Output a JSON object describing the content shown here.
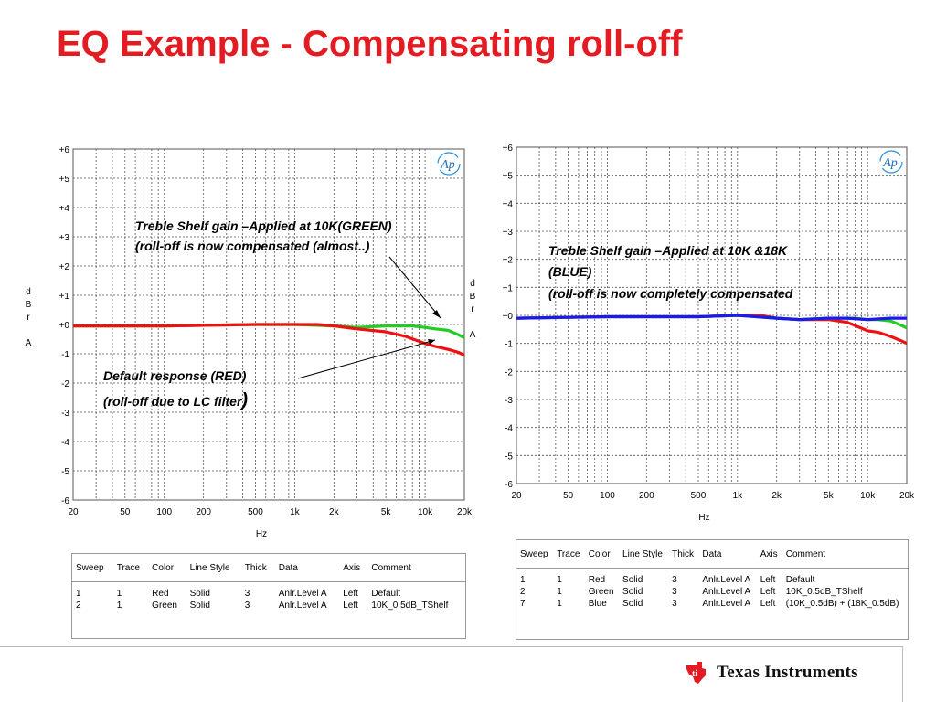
{
  "page": {
    "title": "EQ Example - Compensating roll-off",
    "company": "Texas Instruments"
  },
  "charts": {
    "left": {
      "annotations": {
        "green_1": "Treble Shelf gain –Applied at 10K(GREEN)",
        "green_2": "(roll-off is now compensated (almost..)",
        "red_1": "Default response  (RED)",
        "red_2": "(roll-off due to LC filter",
        "red_2_paren": ")"
      },
      "legend": {
        "headers": [
          "Sweep",
          "Trace",
          "Color",
          "Line Style",
          "Thick",
          "Data",
          "Axis",
          "Comment"
        ],
        "rows": [
          [
            "1",
            "1",
            "Red",
            "Solid",
            "3",
            "Anlr.Level A",
            "Left",
            "Default"
          ],
          [
            "2",
            "1",
            "Green",
            "Solid",
            "3",
            "Anlr.Level A",
            "Left",
            "10K_0.5dB_TShelf"
          ]
        ]
      }
    },
    "right": {
      "annotations": {
        "blue_1": "Treble Shelf gain –Applied at 10K &18K",
        "blue_2": "(BLUE)",
        "blue_3": "(roll-off is now completely compensated"
      },
      "legend": {
        "headers": [
          "Sweep",
          "Trace",
          "Color",
          "Line Style",
          "Thick",
          "Data",
          "Axis",
          "Comment"
        ],
        "rows": [
          [
            "1",
            "1",
            "Red",
            "Solid",
            "3",
            "Anlr.Level A",
            "Left",
            "Default"
          ],
          [
            "2",
            "1",
            "Green",
            "Solid",
            "3",
            "Anlr.Level A",
            "Left",
            "10K_0.5dB_TShelf"
          ],
          [
            "7",
            "1",
            "Blue",
            "Solid",
            "3",
            "Anlr.Level A",
            "Left",
            "(10K_0.5dB) + (18K_0.5dB)"
          ]
        ]
      }
    }
  },
  "chart_data": [
    {
      "type": "line",
      "xlabel": "Hz",
      "ylabel": "d B r A",
      "ylabel_right": "d B r A",
      "xscale": "log",
      "xlim": [
        20,
        20000
      ],
      "ylim": [
        -6,
        6
      ],
      "xticks": [
        20,
        50,
        100,
        200,
        500,
        1000,
        2000,
        5000,
        10000,
        20000
      ],
      "xticklabels": [
        "20",
        "50",
        "100",
        "200",
        "500",
        "1k",
        "2k",
        "5k",
        "10k",
        "20k"
      ],
      "yticks": [
        6,
        5,
        4,
        3,
        2,
        1,
        0,
        -1,
        -2,
        -3,
        -4,
        -5,
        -6
      ],
      "yticklabels": [
        "+6",
        "+5",
        "+4",
        "+3",
        "+2",
        "+1",
        "+0",
        "-1",
        "-2",
        "-3",
        "-4",
        "-5",
        "-6"
      ],
      "logo": "Ap",
      "grid": true,
      "series": [
        {
          "name": "Green",
          "color": "#22cc22",
          "x": [
            20,
            100,
            500,
            1000,
            2000,
            3000,
            5000,
            8000,
            10000,
            12000,
            15000,
            18000,
            20000
          ],
          "y": [
            -0.05,
            -0.05,
            0.0,
            0.0,
            -0.05,
            -0.1,
            -0.05,
            -0.05,
            -0.1,
            -0.15,
            -0.2,
            -0.35,
            -0.45
          ]
        },
        {
          "name": "Red",
          "color": "#ee1111",
          "x": [
            20,
            100,
            500,
            1000,
            1500,
            2000,
            3000,
            5000,
            7000,
            10000,
            12000,
            15000,
            18000,
            20000
          ],
          "y": [
            -0.05,
            -0.05,
            0.0,
            0.0,
            0.0,
            -0.05,
            -0.15,
            -0.25,
            -0.4,
            -0.65,
            -0.75,
            -0.85,
            -0.95,
            -1.05
          ]
        }
      ]
    },
    {
      "type": "line",
      "xlabel": "Hz",
      "xscale": "log",
      "xlim": [
        20,
        20000
      ],
      "ylim": [
        -6,
        6
      ],
      "xticks": [
        20,
        50,
        100,
        200,
        500,
        1000,
        2000,
        5000,
        10000,
        20000
      ],
      "xticklabels": [
        "20",
        "50",
        "100",
        "200",
        "500",
        "1k",
        "2k",
        "5k",
        "10k",
        "20k"
      ],
      "yticks": [
        6,
        5,
        4,
        3,
        2,
        1,
        0,
        -1,
        -2,
        -3,
        -4,
        -5,
        -6
      ],
      "yticklabels": [
        "+6",
        "+5",
        "+4",
        "+3",
        "+2",
        "+1",
        "+0",
        "-1",
        "-2",
        "-3",
        "-4",
        "-5",
        "-6"
      ],
      "logo": "Ap",
      "grid": true,
      "series": [
        {
          "name": "Red",
          "color": "#ee1111",
          "x": [
            20,
            100,
            500,
            1000,
            1500,
            2000,
            3000,
            5000,
            7000,
            10000,
            12000,
            15000,
            18000,
            20000
          ],
          "y": [
            -0.1,
            -0.05,
            -0.05,
            0.0,
            0.0,
            -0.1,
            -0.15,
            -0.15,
            -0.25,
            -0.55,
            -0.6,
            -0.75,
            -0.9,
            -1.0
          ]
        },
        {
          "name": "Green",
          "color": "#22cc22",
          "x": [
            20,
            100,
            500,
            1000,
            2000,
            3000,
            5000,
            8000,
            10000,
            12000,
            15000,
            18000,
            20000
          ],
          "y": [
            -0.1,
            -0.05,
            -0.05,
            0.0,
            -0.1,
            -0.15,
            -0.1,
            -0.1,
            -0.15,
            -0.15,
            -0.2,
            -0.35,
            -0.45
          ]
        },
        {
          "name": "Blue",
          "color": "#1a1aee",
          "x": [
            20,
            100,
            500,
            1000,
            2000,
            3000,
            5000,
            7000,
            10000,
            15000,
            20000
          ],
          "y": [
            -0.1,
            -0.05,
            -0.05,
            0.0,
            -0.1,
            -0.15,
            -0.1,
            -0.1,
            -0.15,
            -0.1,
            -0.1
          ]
        }
      ]
    }
  ]
}
